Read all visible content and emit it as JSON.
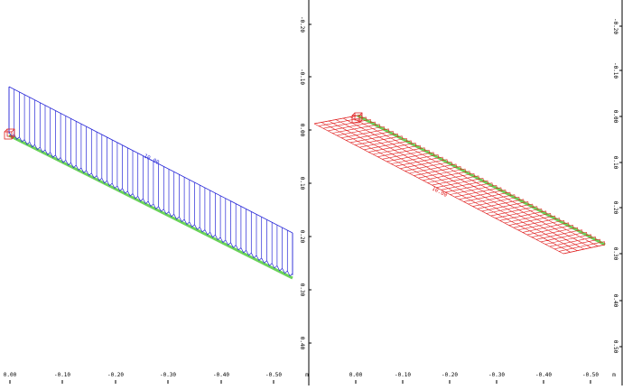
{
  "colors": {
    "load": "#2a2ad8",
    "beam": "#6bd35a",
    "axis": "#000000",
    "load2": "#e02020"
  },
  "left_view": {
    "load_label": "10.00",
    "x_ticks": [
      "0.00",
      "-0.10",
      "-0.20",
      "-0.30",
      "-0.40",
      "-0.50"
    ],
    "x_unit": "m",
    "y_ticks": [
      "-0.20",
      "-0.10",
      "0.00",
      "0.10",
      "0.20",
      "0.30",
      "0.40"
    ]
  },
  "right_view": {
    "load_label": "10.00",
    "x_ticks": [
      "0.00",
      "-0.10",
      "-0.20",
      "-0.30",
      "-0.40",
      "-0.50"
    ],
    "x_unit": "m",
    "y_ticks": [
      "-0.20",
      "-0.10",
      "0.00",
      "0.10",
      "0.20",
      "0.30",
      "0.40",
      "0.50"
    ]
  }
}
